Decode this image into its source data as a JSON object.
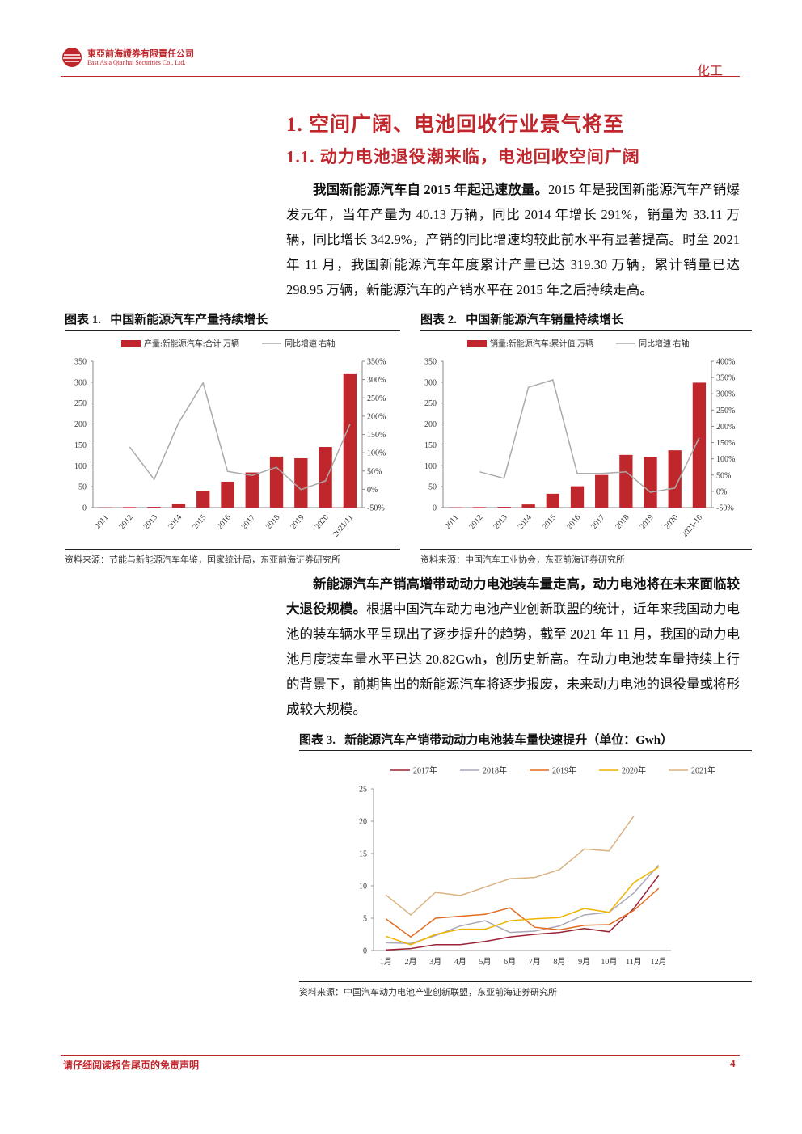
{
  "header": {
    "company_cn": "東亞前海證券有限責任公司",
    "company_en": "East Asia Qianhai Securities Co., Ltd.",
    "sector": "化工"
  },
  "headings": [
    "1. 空间广阔、电池回收行业景气将至",
    "1.1. 动力电池退役潮来临，电池回收空间广阔"
  ],
  "paragraphs": [
    {
      "bold": "我国新能源汽车自 2015 年起迅速放量。",
      "text": "2015 年是我国新能源汽车产销爆发元年，当年产量为 40.13 万辆，同比 2014 年增长 291%，销量为 33.11 万辆，同比增长 342.9%，产销的同比增速均较此前水平有显著提高。时至 2021 年 11 月，我国新能源汽车年度累计产量已达 319.30 万辆，累计销量已达 298.95 万辆，新能源汽车的产销水平在 2015 年之后持续走高。"
    },
    {
      "bold": "新能源汽车产销高增带动动力电池装车量走高，动力电池将在未来面临较大退役规模。",
      "text": "根据中国汽车动力电池产业创新联盟的统计，近年来我国动力电池的装车辆水平呈现出了逐步提升的趋势，截至 2021 年 11 月，我国的动力电池月度装车量水平已达 20.82Gwh，创历史新高。在动力电池装车量持续上行的背景下，前期售出的新能源汽车将逐步报废，未来动力电池的退役量或将形成较大规模。"
    }
  ],
  "chart_data": [
    {
      "type": "combo",
      "title": "图表 1.   中国新能源汽车产量持续增长",
      "source": "资料来源：节能与新能源汽车年鉴，国家统计局，东亚前海证券研究所",
      "categories": [
        "2011",
        "2012",
        "2013",
        "2014",
        "2015",
        "2016",
        "2017",
        "2018",
        "2019",
        "2020",
        "2021/11"
      ],
      "series": [
        {
          "name": "产量:新能源汽车:合计 万辆",
          "color": "#c0272d",
          "values": [
            0.8,
            1.3,
            1.8,
            8.4,
            40.13,
            62,
            84,
            122,
            118,
            145,
            319.3
          ]
        },
        {
          "name": "同比增速 右轴",
          "color": "#aaaaaa",
          "axis": "y2",
          "values": [
            null,
            116,
            27,
            182,
            291,
            49,
            38,
            60,
            -1,
            23,
            178
          ]
        }
      ],
      "ylim": [
        0,
        350
      ],
      "yticks": [
        0,
        50,
        100,
        150,
        200,
        250,
        300,
        350
      ],
      "y2lim": [
        -50,
        350
      ],
      "y2ticks": [
        {
          "value": -50,
          "label": "-50%"
        },
        {
          "value": 0,
          "label": "0%"
        },
        {
          "value": 50,
          "label": "50%"
        },
        {
          "value": 100,
          "label": "100%"
        },
        {
          "value": 150,
          "label": "150%"
        },
        {
          "value": 200,
          "label": "200%"
        },
        {
          "value": 250,
          "label": "250%"
        },
        {
          "value": 300,
          "label": "300%"
        },
        {
          "value": 350,
          "label": "350%"
        }
      ]
    },
    {
      "type": "combo",
      "title": "图表 2.   中国新能源汽车销量持续增长",
      "source": "资料来源：中国汽车工业协会，东亚前海证券研究所",
      "categories": [
        "2011",
        "2012",
        "2013",
        "2014",
        "2015",
        "2016",
        "2017",
        "2018",
        "2019",
        "2020",
        "2021-10"
      ],
      "series": [
        {
          "name": "销量:新能源汽车:累计值 万辆",
          "color": "#c0272d",
          "values": [
            0.8,
            1.3,
            1.8,
            7.5,
            33.11,
            51,
            78,
            126,
            121,
            137,
            298.95
          ]
        },
        {
          "name": "同比增速 右轴",
          "color": "#aaaaaa",
          "axis": "y2",
          "values": [
            null,
            60,
            40,
            320,
            342.9,
            55,
            55,
            60,
            -3,
            10,
            165
          ]
        }
      ],
      "ylim": [
        0,
        350
      ],
      "yticks": [
        0,
        50,
        100,
        150,
        200,
        250,
        300,
        350
      ],
      "y2lim": [
        -50,
        400
      ],
      "y2ticks": [
        {
          "value": -50,
          "label": "-50%"
        },
        {
          "value": 0,
          "label": "0%"
        },
        {
          "value": 50,
          "label": "50%"
        },
        {
          "value": 100,
          "label": "100%"
        },
        {
          "value": 150,
          "label": "150%"
        },
        {
          "value": 200,
          "label": "200%"
        },
        {
          "value": 250,
          "label": "250%"
        },
        {
          "value": 300,
          "label": "300%"
        },
        {
          "value": 350,
          "label": "350%"
        },
        {
          "value": 400,
          "label": "400%"
        }
      ]
    },
    {
      "type": "line",
      "title": "图表 3.   新能源汽车产销带动动力电池装车量快速提升（单位：Gwh）",
      "source": "资料来源：中国汽车动力电池产业创新联盟，东亚前海证券研究所",
      "categories": [
        "1月",
        "2月",
        "3月",
        "4月",
        "5月",
        "6月",
        "7月",
        "8月",
        "9月",
        "10月",
        "11月",
        "12月"
      ],
      "series": [
        {
          "name": "2017年",
          "color": "#9b2335",
          "values": [
            0.1,
            0.3,
            0.9,
            0.9,
            1.4,
            2.1,
            2.5,
            2.8,
            3.4,
            2.9,
            6.5,
            11.6
          ]
        },
        {
          "name": "2018年",
          "color": "#a9a9b8",
          "values": [
            1.2,
            1.1,
            2.3,
            3.8,
            4.6,
            2.8,
            3.0,
            3.8,
            5.5,
            5.9,
            8.9,
            13.2
          ]
        },
        {
          "name": "2019年",
          "color": "#e36c1f",
          "values": [
            4.9,
            2.1,
            5.0,
            5.3,
            5.6,
            6.6,
            3.6,
            3.2,
            3.9,
            4.0,
            6.2,
            9.6
          ]
        },
        {
          "name": "2020年",
          "color": "#f0b400",
          "values": [
            2.2,
            0.9,
            2.5,
            3.3,
            3.3,
            4.6,
            4.9,
            5.1,
            6.5,
            5.9,
            10.5,
            12.9
          ]
        },
        {
          "name": "2021年",
          "color": "#d9b382",
          "values": [
            8.6,
            5.5,
            9.0,
            8.5,
            9.8,
            11.1,
            11.3,
            12.5,
            15.7,
            15.4,
            20.8,
            null
          ]
        }
      ],
      "ylim": [
        0,
        25
      ],
      "yticks": [
        0,
        5,
        10,
        15,
        20,
        25
      ]
    }
  ],
  "footer": {
    "disclaimer": "请仔细阅读报告尾页的免责声明",
    "page": "4"
  }
}
